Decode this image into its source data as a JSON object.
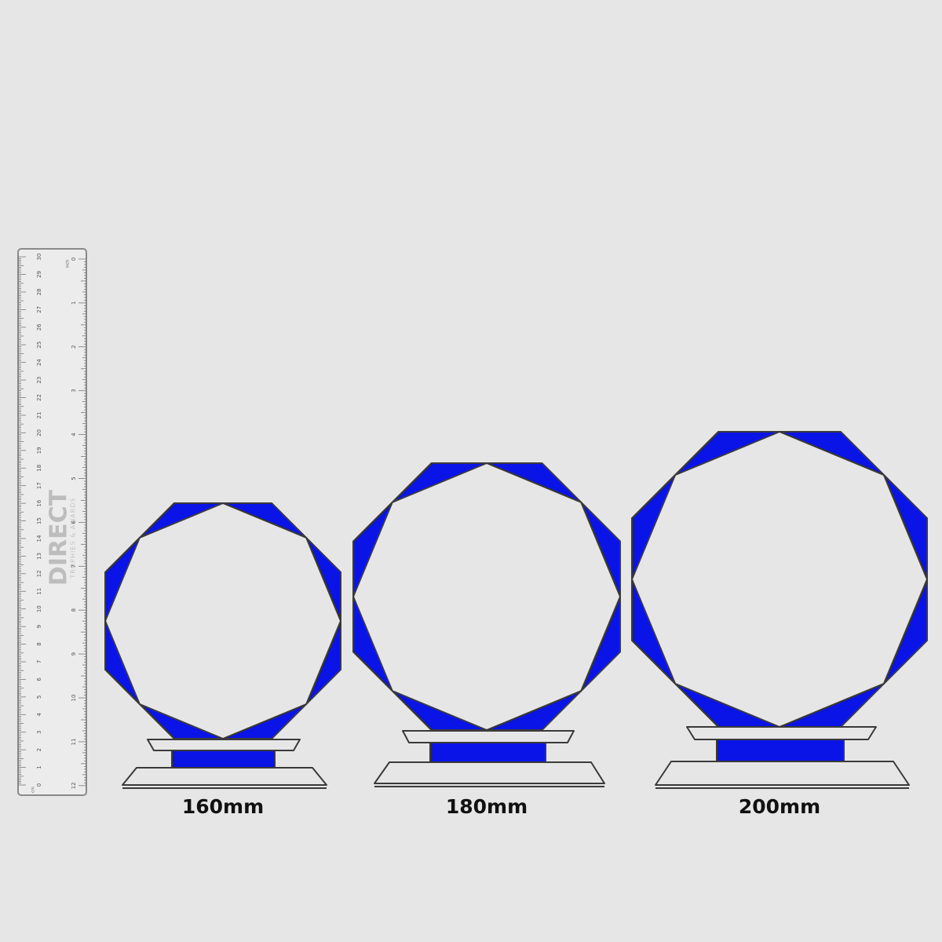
{
  "sizes": [
    "160mm",
    "180mm",
    "200mm"
  ],
  "ruler": {
    "cm_unit": "cm",
    "inch_unit": "inch",
    "cm_labels": [
      "0",
      "1",
      "2",
      "3",
      "4",
      "5",
      "6",
      "7",
      "8",
      "9",
      "10",
      "11",
      "12",
      "13",
      "14",
      "15",
      "16",
      "17",
      "18",
      "19",
      "20",
      "21",
      "22",
      "23",
      "24",
      "25",
      "26",
      "27",
      "28",
      "29",
      "30"
    ],
    "inch_labels": [
      "0",
      "1",
      "2",
      "3",
      "4",
      "5",
      "6",
      "7",
      "8",
      "9",
      "10",
      "11",
      "12"
    ],
    "brand": "DIRECT",
    "tagline": "TROPHIES & AWARDS"
  }
}
